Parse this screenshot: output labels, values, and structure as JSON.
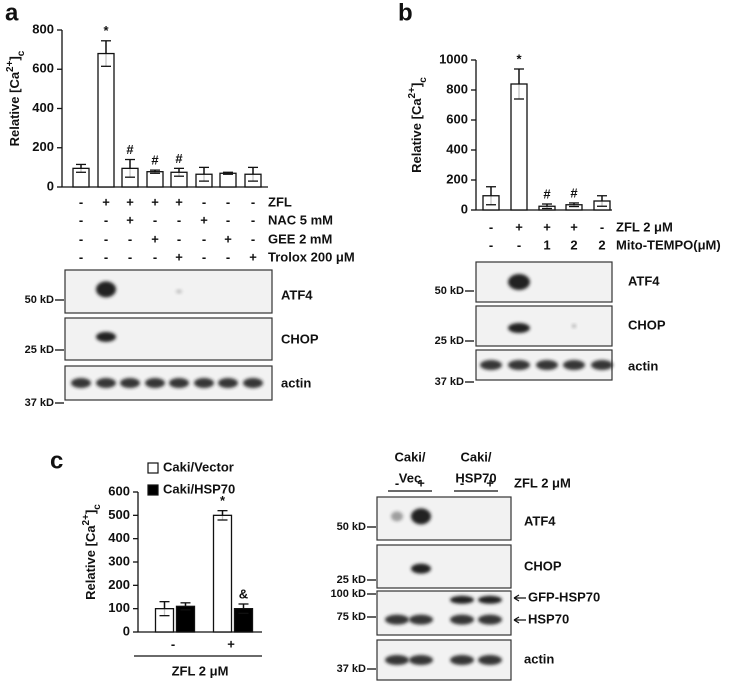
{
  "chart_data": [
    {
      "type": "bar",
      "panel": "a",
      "ylabel": [
        "Relative [Ca",
        "2+",
        "]",
        "c"
      ],
      "categories": [
        null,
        null,
        null,
        null,
        null,
        null,
        null,
        null
      ],
      "values": [
        95,
        680,
        95,
        78,
        75,
        65,
        70,
        65
      ],
      "errors": [
        20,
        65,
        45,
        8,
        20,
        35,
        5,
        35
      ],
      "value_annotations": [
        null,
        "*",
        "#",
        "#",
        "#",
        null,
        null,
        null
      ],
      "color": "#ffffff",
      "ylim": [
        0,
        800
      ],
      "yticks": [
        0,
        200,
        400,
        600,
        800
      ],
      "treatments": [
        {
          "label": "ZFL",
          "signs": [
            "-",
            "+",
            "+",
            "+",
            "+",
            "-",
            "-",
            "-"
          ]
        },
        {
          "label": "NAC 5 mM",
          "signs": [
            "-",
            "-",
            "+",
            "-",
            "-",
            "+",
            "-",
            "-"
          ]
        },
        {
          "label": "GEE 2 mM",
          "signs": [
            "-",
            "-",
            "-",
            "+",
            "-",
            "-",
            "+",
            "-"
          ]
        },
        {
          "label": "Trolox 200 μM",
          "signs": [
            "-",
            "-",
            "-",
            "-",
            "+",
            "-",
            "-",
            "+"
          ]
        }
      ],
      "blots": [
        {
          "label": "ATF4",
          "marker": "50 kD"
        },
        {
          "label": "CHOP",
          "marker": "25 kD"
        },
        {
          "label": "actin",
          "marker": "37 kD"
        }
      ]
    },
    {
      "type": "bar",
      "panel": "b",
      "ylabel": [
        "Relative [Ca",
        "2+",
        "]",
        "c"
      ],
      "categories": [
        null,
        null,
        null,
        null,
        null
      ],
      "values": [
        95,
        840,
        25,
        35,
        60
      ],
      "errors": [
        60,
        100,
        15,
        12,
        35
      ],
      "value_annotations": [
        null,
        "*",
        "#",
        "#",
        null
      ],
      "color": "#ffffff",
      "ylim": [
        0,
        1000
      ],
      "yticks": [
        0,
        200,
        400,
        600,
        800,
        1000
      ],
      "treatments": [
        {
          "label": "ZFL 2 μM",
          "signs": [
            "-",
            "+",
            "+",
            "+",
            "-"
          ]
        },
        {
          "label": "Mito-TEMPO(μM)",
          "signs": [
            "-",
            "-",
            "1",
            "2",
            "2"
          ]
        }
      ],
      "blots": [
        {
          "label": "ATF4",
          "marker": "50 kD"
        },
        {
          "label": "CHOP",
          "marker": "25 kD"
        },
        {
          "label": "actin",
          "marker": "37 kD"
        }
      ]
    },
    {
      "type": "grouped_bar",
      "panel": "c",
      "ylabel": [
        "Relative [Ca",
        "2+",
        "]",
        "c"
      ],
      "categories": [
        "-",
        "+"
      ],
      "xlabel": "ZFL 2 μM",
      "series": [
        {
          "name": "Caki/Vector",
          "color": "#ffffff",
          "values": [
            100,
            500
          ],
          "errors": [
            30,
            20
          ],
          "value_annotations": [
            null,
            "*"
          ]
        },
        {
          "name": "Caki/HSP70",
          "color": "#000000",
          "values": [
            110,
            100
          ],
          "errors": [
            15,
            20
          ],
          "value_annotations": [
            null,
            "&"
          ]
        }
      ],
      "ylim": [
        0,
        600
      ],
      "yticks": [
        0,
        100,
        200,
        300,
        400,
        500,
        600
      ],
      "legend": "top-left",
      "blot_headers": [
        [
          "Caki/",
          "Vec"
        ],
        [
          "Caki/",
          "HSP70"
        ]
      ],
      "treatments": [
        {
          "label": "ZFL 2 μM",
          "signs": [
            "-",
            "+",
            "-",
            "+"
          ]
        }
      ],
      "blots": [
        {
          "label": "ATF4",
          "marker": "50 kD"
        },
        {
          "label": "CHOP",
          "marker": "25 kD"
        },
        {
          "label": "GFP-HSP70",
          "marker": "100 kD"
        },
        {
          "label": "HSP70",
          "marker": "75 kD"
        },
        {
          "label": "actin",
          "marker": "37 kD"
        }
      ]
    }
  ]
}
